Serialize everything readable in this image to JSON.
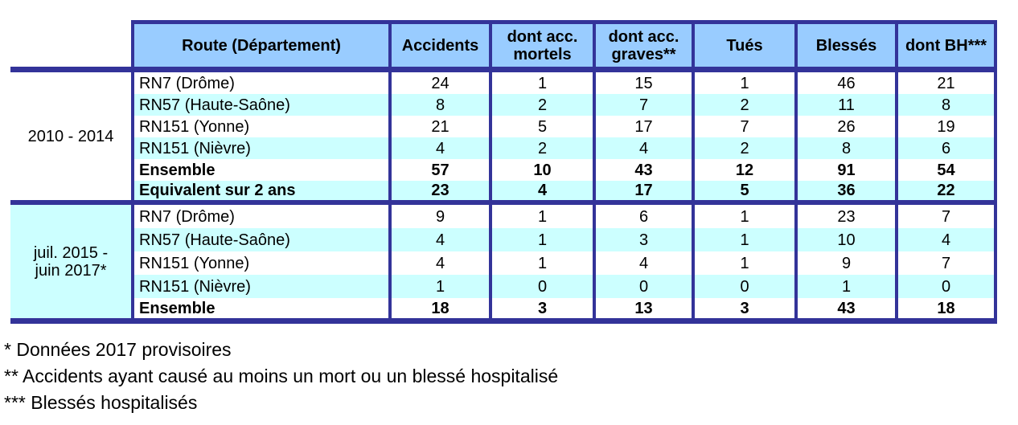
{
  "colors": {
    "header_bg": "#99CCFF",
    "stripe_bg": "#CCFFFF",
    "border": "#333399",
    "text": "#000000"
  },
  "table": {
    "columns": [
      "Route (Département)",
      "Accidents",
      "dont acc. mortels",
      "dont acc. graves**",
      "Tués",
      "Blessés",
      "dont BH***"
    ],
    "groups": [
      {
        "period": "2010 - 2014",
        "rows": [
          {
            "route": "RN7 (Drôme)",
            "values": [
              "24",
              "1",
              "15",
              "1",
              "46",
              "21"
            ]
          },
          {
            "route": "RN57 (Haute-Saône)",
            "values": [
              "8",
              "2",
              "7",
              "2",
              "11",
              "8"
            ]
          },
          {
            "route": "RN151 (Yonne)",
            "values": [
              "21",
              "5",
              "17",
              "7",
              "26",
              "19"
            ]
          },
          {
            "route": "RN151 (Nièvre)",
            "values": [
              "4",
              "2",
              "4",
              "2",
              "8",
              "6"
            ]
          },
          {
            "route": "Ensemble",
            "values": [
              "57",
              "10",
              "43",
              "12",
              "91",
              "54"
            ]
          },
          {
            "route": "Equivalent sur 2 ans",
            "values": [
              "23",
              "4",
              "17",
              "5",
              "36",
              "22"
            ]
          }
        ]
      },
      {
        "period": "juil. 2015 - juin 2017*",
        "rows": [
          {
            "route": "RN7 (Drôme)",
            "values": [
              "9",
              "1",
              "6",
              "1",
              "23",
              "7"
            ]
          },
          {
            "route": "RN57 (Haute-Saône)",
            "values": [
              "4",
              "1",
              "3",
              "1",
              "10",
              "4"
            ]
          },
          {
            "route": "RN151 (Yonne)",
            "values": [
              "4",
              "1",
              "4",
              "1",
              "9",
              "7"
            ]
          },
          {
            "route": "RN151 (Nièvre)",
            "values": [
              "1",
              "0",
              "0",
              "0",
              "1",
              "0"
            ]
          },
          {
            "route": "Ensemble",
            "values": [
              "18",
              "3",
              "13",
              "3",
              "43",
              "18"
            ]
          }
        ]
      }
    ]
  },
  "footnotes": [
    "* Données 2017 provisoires",
    "** Accidents ayant causé au moins un mort ou un blessé hospitalisé",
    "*** Blessés hospitalisés"
  ]
}
